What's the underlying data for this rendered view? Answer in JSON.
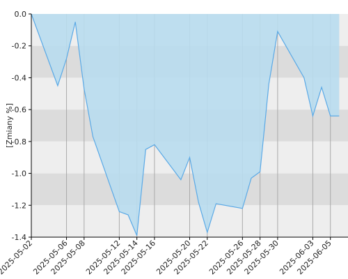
{
  "chart_data": {
    "type": "area",
    "ylabel": "[Zmiany %]",
    "xlabel": "",
    "title": "",
    "ylim": [
      -1.4,
      0.0
    ],
    "yticks": [
      0.0,
      -0.2,
      -0.4,
      -0.6,
      -0.8,
      -1.0,
      -1.2,
      -1.4
    ],
    "ytick_labels": [
      "0.0",
      "-0.2",
      "-0.4",
      "-0.6",
      "-0.8",
      "-1.0",
      "-1.2",
      "-1.4"
    ],
    "xlim": [
      "2025-05-02",
      "2025-06-07"
    ],
    "xtick_labels": [
      "2025-05-02",
      "2025-05-06",
      "2025-05-08",
      "2025-05-12",
      "2025-05-14",
      "2025-05-16",
      "2025-05-20",
      "2025-05-22",
      "2025-05-26",
      "2025-05-28",
      "2025-05-30",
      "2025-06-03",
      "2025-06-05"
    ],
    "grid": true,
    "series": [
      {
        "x": [
          "2025-05-02",
          "2025-05-05",
          "2025-05-06",
          "2025-05-07",
          "2025-05-08",
          "2025-05-09",
          "2025-05-12",
          "2025-05-13",
          "2025-05-14",
          "2025-05-15",
          "2025-05-16",
          "2025-05-19",
          "2025-05-20",
          "2025-05-21",
          "2025-05-22",
          "2025-05-23",
          "2025-05-26",
          "2025-05-27",
          "2025-05-28",
          "2025-05-29",
          "2025-05-30",
          "2025-06-02",
          "2025-06-03",
          "2025-06-04",
          "2025-06-05",
          "2025-06-06"
        ],
        "values": [
          0.0,
          -0.45,
          -0.28,
          -0.05,
          -0.47,
          -0.77,
          -1.24,
          -1.26,
          -1.39,
          -0.85,
          -0.82,
          -1.04,
          -0.9,
          -1.18,
          -1.37,
          -1.19,
          -1.22,
          -1.03,
          -0.99,
          -0.44,
          -0.11,
          -0.4,
          -0.64,
          -0.46,
          -0.64,
          -0.64
        ]
      }
    ],
    "colors": {
      "area_fill": "#b8dcee",
      "line": "#5aa9e6",
      "band_light": "#eeeeee",
      "band_dark": "#dcdcdc",
      "grid_vertical": "#aaaaaa",
      "axis": "#000000"
    }
  }
}
